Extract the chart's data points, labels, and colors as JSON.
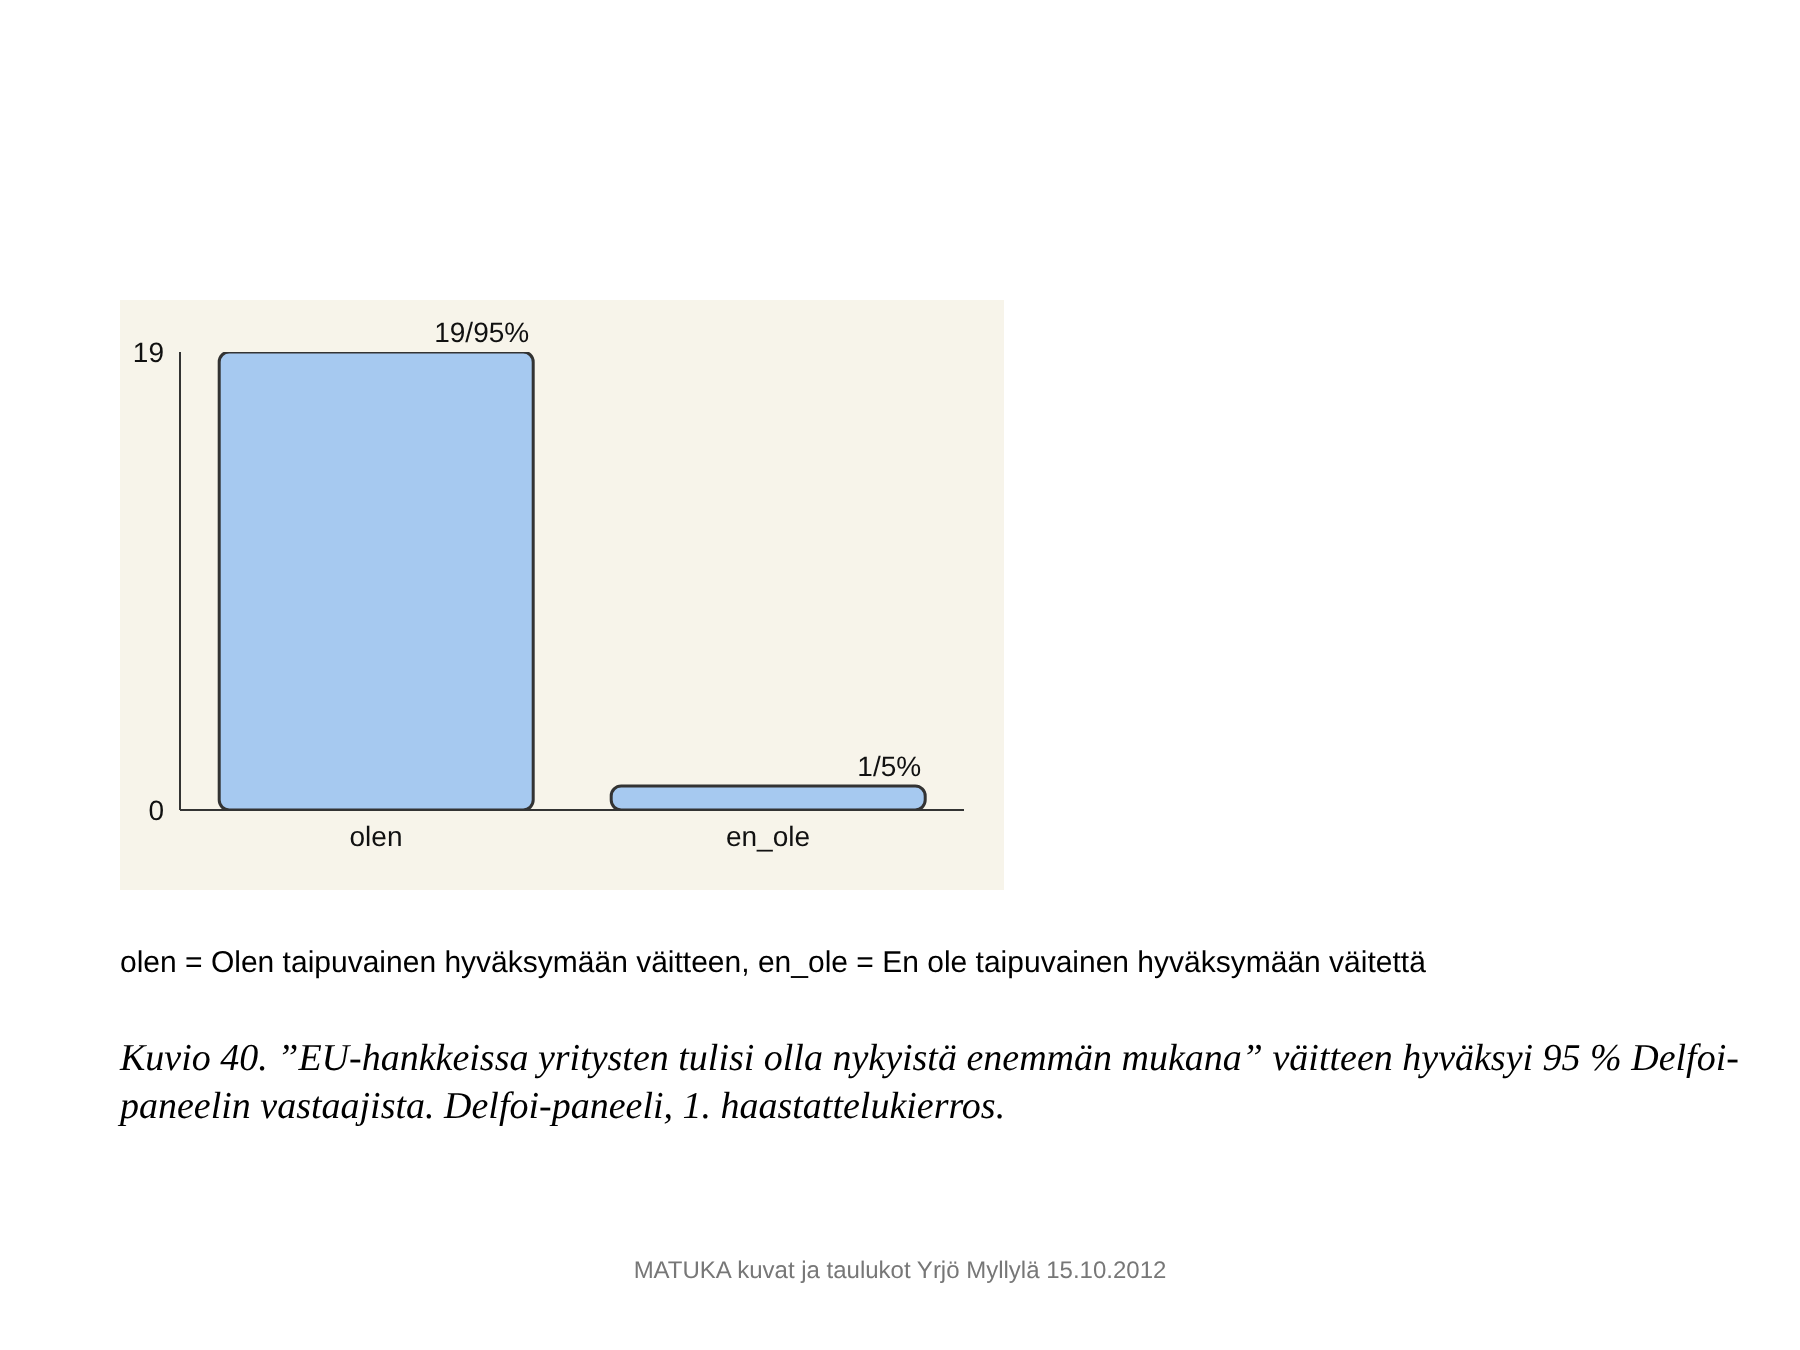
{
  "chart_data": {
    "type": "bar",
    "categories": [
      "olen",
      "en_ole"
    ],
    "series": [
      {
        "color": "#a6c9f0",
        "values": [
          19,
          1
        ],
        "value_labels": [
          "19/95%",
          "1/5%"
        ]
      }
    ],
    "ylim": [
      0,
      19
    ],
    "yticks": [
      0,
      19
    ],
    "grid": false,
    "legend": false,
    "annotations": [
      "olen = Olen taipuvainen hyväksymään väitteen,  en_ole = En ole taipuvainen hyväksymään väitettä",
      "Kuvio 40. ”EU-hankkeissa yritysten tulisi olla nykyistä enemmän mukana” väitteen hyväksyi 95 % Delfoi-paneelin vastaajista. Delfoi-paneeli, 1. haastattelukierros.",
      "MATUKA kuvat ja taulukot Yrjö Myllylä 15.10.2012"
    ]
  }
}
